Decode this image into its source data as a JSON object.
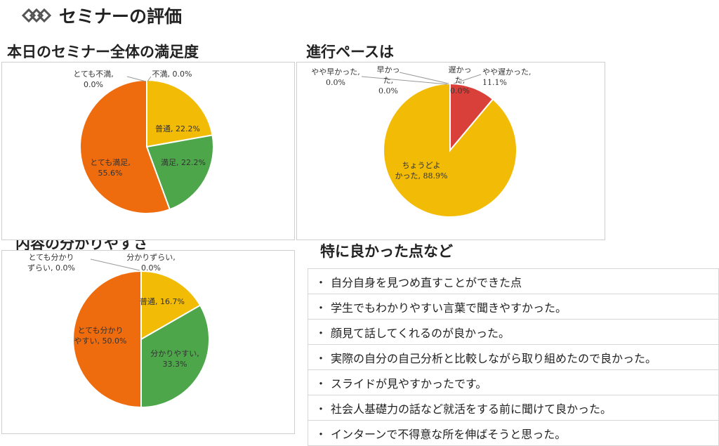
{
  "page": {
    "title": "セミナーの評価"
  },
  "sections": {
    "overall": "本日のセミナー全体の満足度",
    "pace": "進行ペースは",
    "clarity": "内容の分かりやすさ",
    "good_points": "特に良かった点など"
  },
  "chart_data": [
    {
      "type": "pie",
      "title": "本日のセミナー全体の満足度",
      "slices": [
        {
          "label": "普通",
          "value": 22.2,
          "color": "#F2BB05",
          "lines": [
            "普通, 22.2%"
          ]
        },
        {
          "label": "満足",
          "value": 22.2,
          "color": "#4EA64A",
          "lines": [
            "満足, 22.2%"
          ]
        },
        {
          "label": "とても満足",
          "value": 55.6,
          "color": "#EE6C0E",
          "lines": [
            "とても満足,",
            "55.6%"
          ]
        },
        {
          "label": "とても不満",
          "value": 0.0,
          "color": "#999999",
          "lines": [
            "とても不満,",
            "0.0%"
          ]
        },
        {
          "label": "不満",
          "value": 0.0,
          "color": "#999999",
          "lines": [
            "不満, 0.0%"
          ]
        }
      ]
    },
    {
      "type": "pie",
      "title": "進行ペースは",
      "slices": [
        {
          "label": "やや遅かった",
          "value": 11.1,
          "color": "#D9403A",
          "lines": [
            "やや遅かった,",
            "11.1%"
          ]
        },
        {
          "label": "ちょうどよかった",
          "value": 88.9,
          "color": "#F2BB05",
          "lines": [
            "ちょうどよ",
            "かった, 88.9%"
          ]
        },
        {
          "label": "やや早かった",
          "value": 0.0,
          "color": "#999999",
          "lines": [
            "やや早かった,",
            "0.0%"
          ]
        },
        {
          "label": "早かった",
          "value": 0.0,
          "color": "#999999",
          "lines": [
            "早かっ",
            "た,",
            "0.0%"
          ]
        },
        {
          "label": "遅かった",
          "value": 0.0,
          "color": "#999999",
          "lines": [
            "遅かっ",
            "た,",
            "0.0%"
          ]
        }
      ]
    },
    {
      "type": "pie",
      "title": "内容の分かりやすさ",
      "slices": [
        {
          "label": "普通",
          "value": 16.7,
          "color": "#F2BB05",
          "lines": [
            "普通, 16.7%"
          ]
        },
        {
          "label": "分かりやすい",
          "value": 33.3,
          "color": "#4EA64A",
          "lines": [
            "分かりやすい,",
            "33.3%"
          ]
        },
        {
          "label": "とても分かりやすい",
          "value": 50.0,
          "color": "#EE6C0E",
          "lines": [
            "とても分かり",
            "やすい, 50.0%"
          ]
        },
        {
          "label": "とても分かりずらい",
          "value": 0.0,
          "color": "#999999",
          "lines": [
            "とても分かり",
            "ずらい, 0.0%"
          ]
        },
        {
          "label": "分かりずらい",
          "value": 0.0,
          "color": "#999999",
          "lines": [
            "分かりずらい,",
            "0.0%"
          ]
        }
      ]
    }
  ],
  "good_points": {
    "bullet": "・",
    "items": [
      "自分自身を見つめ直すことができた点",
      "学生でもわかりやすい言葉で聞きやすかった。",
      "顔見て話してくれるのが良かった。",
      "実際の自分の自己分析と比較しながら取り組めたので良かった。",
      "スライドが見やすかったです。",
      "社会人基礎力の話など就活をする前に聞けて良かった。",
      "インターンで不得意な所を伸ばそうと思った。"
    ]
  }
}
